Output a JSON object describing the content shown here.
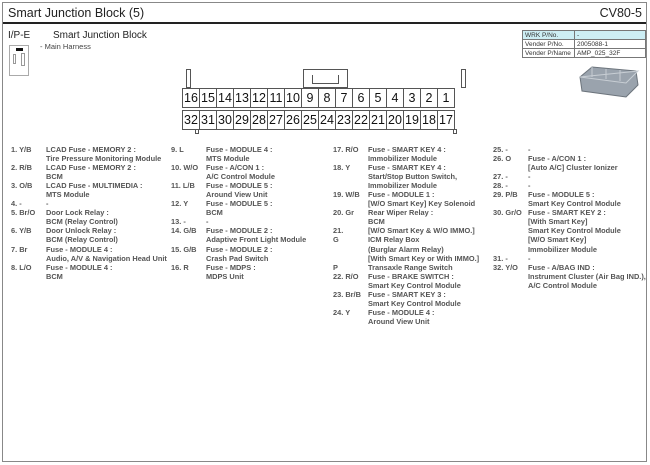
{
  "header": {
    "title": "Smart Junction Block (5)",
    "code": "CV80-5"
  },
  "connector": {
    "id": "I/P-E",
    "name": "Smart Junction Block",
    "harness": "- Main Harness",
    "top_row": [
      "16",
      "15",
      "14",
      "13",
      "12",
      "11",
      "10",
      "9",
      "8",
      "7",
      "6",
      "5",
      "4",
      "3",
      "2",
      "1"
    ],
    "bottom_row": [
      "32",
      "31",
      "30",
      "29",
      "28",
      "27",
      "26",
      "25",
      "24",
      "23",
      "22",
      "21",
      "20",
      "19",
      "18",
      "17"
    ]
  },
  "part_info": [
    {
      "key": "WRK P/No.",
      "value": "-"
    },
    {
      "key": "Vender P/No.",
      "value": "2005088-1"
    },
    {
      "key": "Vender P/Name",
      "value": "AMP_025_32F"
    }
  ],
  "pin_columns": [
    [
      {
        "l": "1. Y/B",
        "t": "LCAD Fuse - MEMORY 2 :"
      },
      {
        "l": "",
        "t": "Tire Pressure Monitoring Module"
      },
      {
        "l": "2. R/B",
        "t": "LCAD Fuse - MEMORY 2 :"
      },
      {
        "l": "",
        "t": "BCM"
      },
      {
        "l": "3. O/B",
        "t": "LCAD Fuse - MULTIMEDIA :"
      },
      {
        "l": "",
        "t": "MTS Module"
      },
      {
        "l": "4. -",
        "t": "-"
      },
      {
        "l": "5. Br/O",
        "t": "Door Lock Relay :"
      },
      {
        "l": "",
        "t": "BCM (Relay Control)"
      },
      {
        "l": "6. Y/B",
        "t": "Door Unlock Relay :"
      },
      {
        "l": "",
        "t": "BCM (Relay Control)"
      },
      {
        "l": "7. Br",
        "t": "Fuse - MODULE 4 :"
      },
      {
        "l": "",
        "t": "Audio, A/V & Navigation Head Unit"
      },
      {
        "l": "8. L/O",
        "t": "Fuse - MODULE 4 :"
      },
      {
        "l": "",
        "t": "BCM"
      }
    ],
    [
      {
        "l": "9. L",
        "t": "Fuse - MODULE 4 :"
      },
      {
        "l": "",
        "t": "MTS Module"
      },
      {
        "l": "10. W/O",
        "t": "Fuse - A/CON 1 :"
      },
      {
        "l": "",
        "t": "A/C Control Module"
      },
      {
        "l": "11. L/B",
        "t": "Fuse - MODULE 5 :"
      },
      {
        "l": "",
        "t": "Around View Unit"
      },
      {
        "l": "12. Y",
        "t": "Fuse - MODULE 5 :"
      },
      {
        "l": "",
        "t": "BCM"
      },
      {
        "l": "13. -",
        "t": "-"
      },
      {
        "l": "14. G/B",
        "t": "Fuse - MODULE 2 :"
      },
      {
        "l": "",
        "t": "Adaptive Front Light Module"
      },
      {
        "l": "15. G/B",
        "t": "Fuse - MODULE 2 :"
      },
      {
        "l": "",
        "t": "Crash Pad Switch"
      },
      {
        "l": "16. R",
        "t": "Fuse - MDPS :"
      },
      {
        "l": "",
        "t": "MDPS Unit"
      }
    ],
    [
      {
        "l": "17. R/O",
        "t": "Fuse - SMART KEY 4 :"
      },
      {
        "l": "",
        "t": "Immobilizer Module"
      },
      {
        "l": "18. Y",
        "t": "Fuse - SMART KEY 4 :"
      },
      {
        "l": "",
        "t": "Start/Stop Button Switch,"
      },
      {
        "l": "",
        "t": "Immobilizer Module"
      },
      {
        "l": "19. W/B",
        "t": "Fuse - MODULE 1 :"
      },
      {
        "l": "",
        "t": "[W/O Smart Key] Key Solenoid"
      },
      {
        "l": "20. Gr",
        "t": "Rear Wiper Relay :"
      },
      {
        "l": "",
        "t": "BCM"
      },
      {
        "l": "21.",
        "t": "[W/O Smart Key & W/O IMMO.]"
      },
      {
        "l": "G",
        "t": "ICM Relay Box"
      },
      {
        "l": "",
        "t": "(Burglar Alarm Relay)"
      },
      {
        "l": "",
        "t": "[With Smart Key or With IMMO.]"
      },
      {
        "l": "P",
        "t": "Transaxle Range Switch"
      },
      {
        "l": "22. R/O",
        "t": "Fuse - BRAKE SWITCH :"
      },
      {
        "l": "",
        "t": "Smart Key Control Module"
      },
      {
        "l": "23. Br/B",
        "t": "Fuse - SMART KEY 3 :"
      },
      {
        "l": "",
        "t": "Smart Key Control Module"
      },
      {
        "l": "24. Y",
        "t": "Fuse - MODULE 4 :"
      },
      {
        "l": "",
        "t": "Around View Unit"
      }
    ],
    [
      {
        "l": "25. -",
        "t": "-"
      },
      {
        "l": "26. O",
        "t": "Fuse - A/CON 1 :"
      },
      {
        "l": "",
        "t": "[Auto A/C] Cluster Ionizer"
      },
      {
        "l": "27. -",
        "t": "-"
      },
      {
        "l": "28. -",
        "t": "-"
      },
      {
        "l": "29. P/B",
        "t": "Fuse - MODULE 5 :"
      },
      {
        "l": "",
        "t": "Smart Key Control Module"
      },
      {
        "l": "30. Gr/O",
        "t": "Fuse - SMART KEY 2 :"
      },
      {
        "l": "",
        "t": "[With Smart Key]"
      },
      {
        "l": "",
        "t": "Smart Key Control Module"
      },
      {
        "l": "",
        "t": "[W/O Smart Key]"
      },
      {
        "l": "",
        "t": "Immobilizer Module"
      },
      {
        "l": "31. -",
        "t": "-"
      },
      {
        "l": "32. Y/O",
        "t": "Fuse - A/BAG IND :"
      },
      {
        "l": "",
        "t": "Instrument Cluster (Air Bag IND.),"
      },
      {
        "l": "",
        "t": "A/C Control Module"
      }
    ]
  ]
}
